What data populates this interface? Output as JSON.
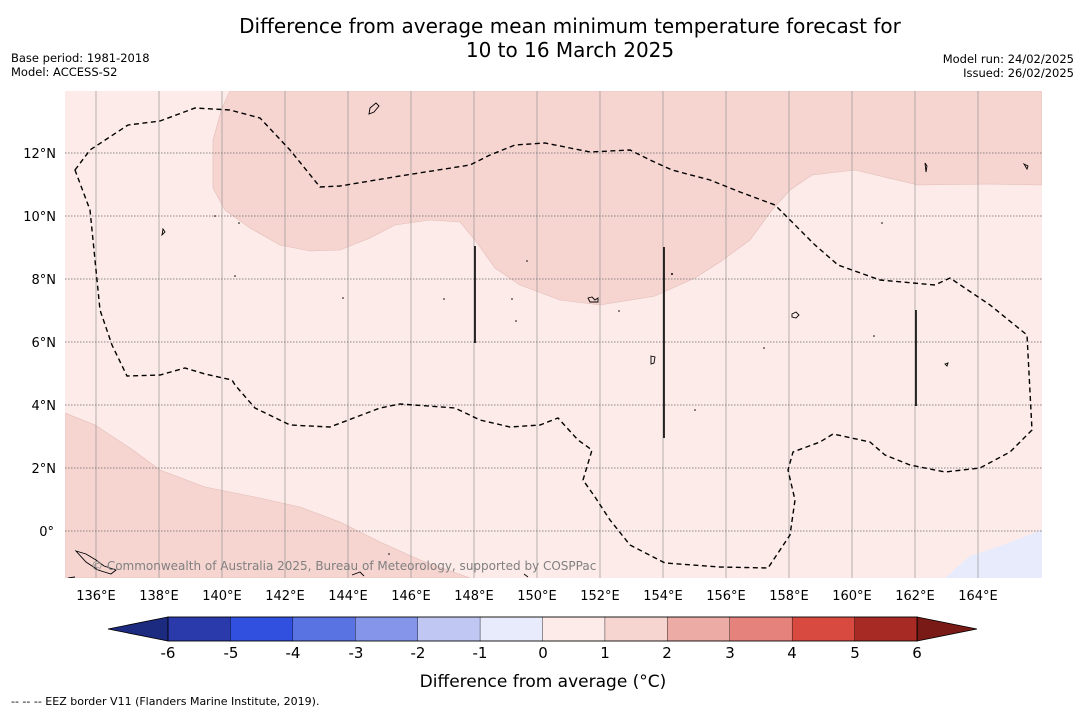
{
  "title": {
    "line1": "Difference from average mean minimum temperature forecast for",
    "line2": "10 to 16 March 2025"
  },
  "metadata_left": {
    "base_period": "Base period: 1981-2018",
    "model": "Model: ACCESS-S2"
  },
  "metadata_right": {
    "model_run": "Model run: 24/02/2025",
    "issued": "Issued: 26/02/2025"
  },
  "map": {
    "copyright": "© Commonwealth of Australia 2025, Bureau of Meteorology, supported by COSPPac",
    "longitude_labels": [
      "136°E",
      "138°E",
      "140°E",
      "142°E",
      "144°E",
      "146°E",
      "148°E",
      "150°E",
      "152°E",
      "154°E",
      "156°E",
      "158°E",
      "160°E",
      "162°E",
      "164°E"
    ],
    "latitude_labels": [
      "12°N",
      "10°N",
      "8°N",
      "6°N",
      "4°N",
      "2°N",
      "0°"
    ],
    "fill_colors": {
      "anomaly_0_to_1": "#fcebe9",
      "anomaly_1_to_2": "#f6d5d1",
      "anomaly_minus1_to_0": "#e8ebfb"
    }
  },
  "colorbar": {
    "label": "Difference from average (°C)",
    "ticks": [
      "-6",
      "-5",
      "-4",
      "-3",
      "-2",
      "-1",
      "0",
      "1",
      "2",
      "3",
      "4",
      "5",
      "6"
    ],
    "colors": [
      "#2a3aab",
      "#3150e0",
      "#5a73e3",
      "#8596ea",
      "#c0c7f3",
      "#e8ebfb",
      "#fcebe9",
      "#f6d5d1",
      "#edaba6",
      "#e5827c",
      "#d84a40",
      "#a82a24"
    ],
    "under_color": "#1c2a80",
    "over_color": "#7a1a16"
  },
  "footer": {
    "legend_text": "--  --  -- EEZ border V11 (Flanders Marine Institute, 2019)."
  }
}
